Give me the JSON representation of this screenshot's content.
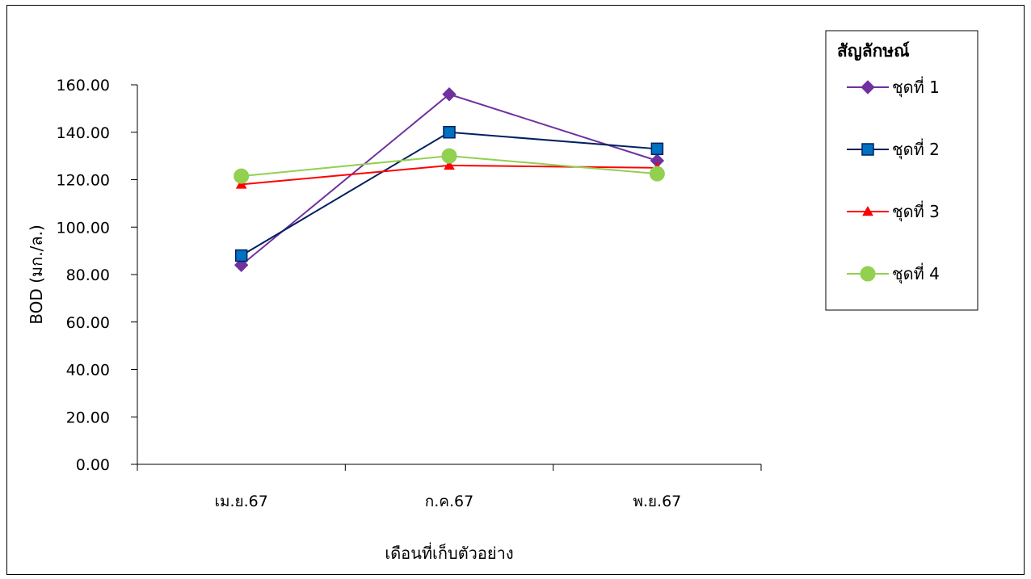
{
  "chart_data": {
    "type": "line",
    "categories": [
      "เม.ย.67",
      "ก.ค.67",
      "พ.ย.67"
    ],
    "ylabel": "BOD (มก./ล.)",
    "xlabel": "เดือนที่เก็บตัวอย่าง",
    "ylim": [
      0,
      160
    ],
    "ytick_step": 20,
    "ytick_decimals": 2,
    "grid": false,
    "legend": {
      "title": "สัญลักษณ์",
      "placement": "top-right"
    },
    "series": [
      {
        "name": "ชุดที่ 1",
        "values": [
          84.0,
          156.0,
          128.0
        ],
        "color": "#7030a0",
        "marker": "diamond"
      },
      {
        "name": "ชุดที่ 2",
        "values": [
          88.0,
          140.0,
          133.0
        ],
        "color": "#002060",
        "marker_fill": "#0070c0",
        "marker": "square"
      },
      {
        "name": "ชุดที่ 3",
        "values": [
          118.0,
          126.0,
          125.0
        ],
        "color": "#ff0000",
        "marker": "triangle"
      },
      {
        "name": "ชุดที่ 4",
        "values": [
          121.5,
          130.0,
          122.5
        ],
        "color": "#92d050",
        "marker": "circle"
      }
    ]
  }
}
